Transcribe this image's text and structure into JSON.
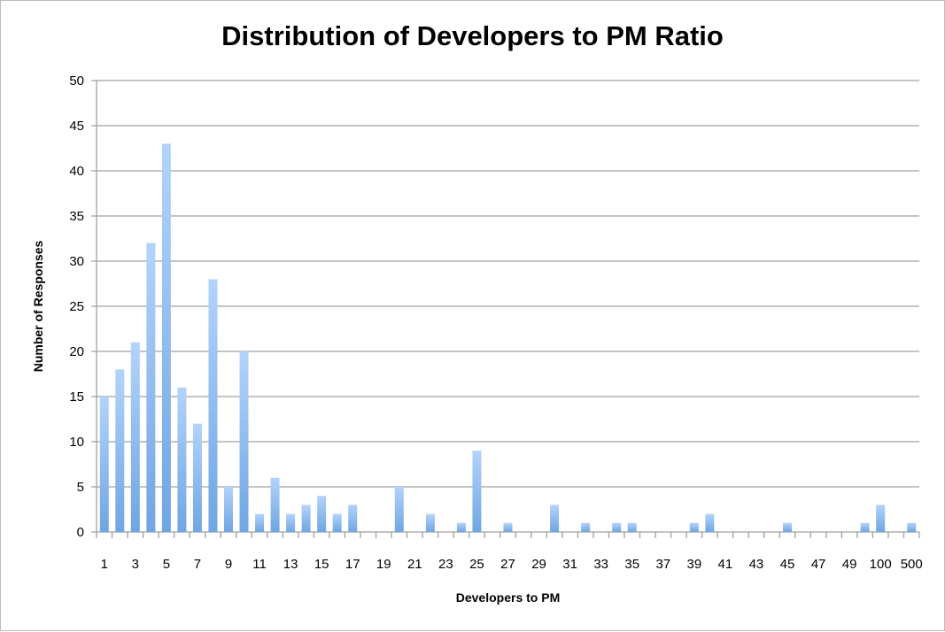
{
  "chart_data": {
    "type": "bar",
    "title": "Distribution of Developers to PM Ratio",
    "xlabel": "Developers to PM",
    "ylabel": "Number of Responses",
    "ylim": [
      0,
      50
    ],
    "yticks": [
      0,
      5,
      10,
      15,
      20,
      25,
      30,
      35,
      40,
      45,
      50
    ],
    "grid": true,
    "legend": "none",
    "bar_color": "#8db8ee",
    "categories": [
      "1",
      "2",
      "3",
      "4",
      "5",
      "6",
      "7",
      "8",
      "9",
      "10",
      "11",
      "12",
      "13",
      "14",
      "15",
      "16",
      "17",
      "18",
      "19",
      "20",
      "21",
      "22",
      "23",
      "24",
      "25",
      "26",
      "27",
      "28",
      "29",
      "30",
      "31",
      "32",
      "33",
      "34",
      "35",
      "36",
      "37",
      "38",
      "39",
      "40",
      "41",
      "42",
      "43",
      "44",
      "45",
      "46",
      "47",
      "48",
      "49",
      "50",
      "100",
      "200",
      "500"
    ],
    "tick_labels": [
      "1",
      "3",
      "5",
      "7",
      "9",
      "11",
      "13",
      "15",
      "17",
      "19",
      "21",
      "23",
      "25",
      "27",
      "29",
      "31",
      "33",
      "35",
      "37",
      "39",
      "41",
      "43",
      "45",
      "47",
      "49",
      "100",
      "500"
    ],
    "values": [
      15,
      18,
      21,
      32,
      43,
      16,
      12,
      28,
      5,
      20,
      2,
      6,
      2,
      3,
      4,
      2,
      3,
      0,
      0,
      5,
      0,
      2,
      0,
      1,
      9,
      0,
      1,
      0,
      0,
      3,
      0,
      1,
      0,
      1,
      1,
      0,
      0,
      0,
      1,
      2,
      0,
      0,
      0,
      0,
      1,
      0,
      0,
      0,
      0,
      1,
      3,
      0,
      1
    ]
  }
}
